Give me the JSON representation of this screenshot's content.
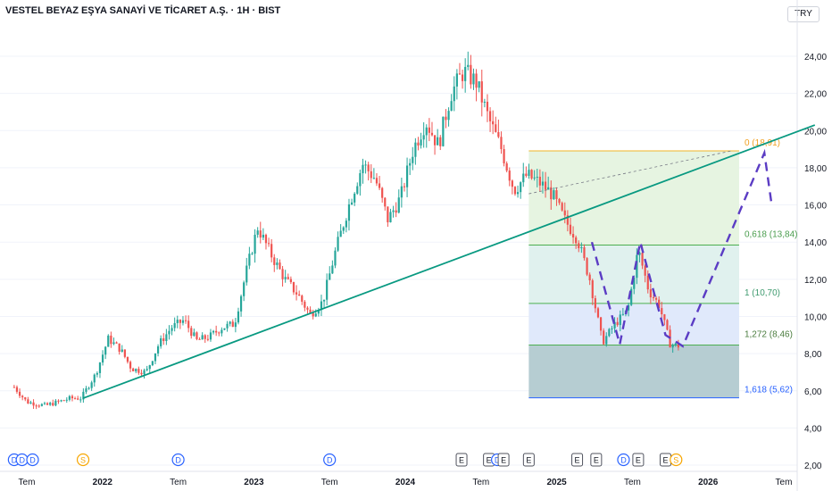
{
  "header": {
    "title": "VESTEL BEYAZ EŞYA SANAYİ VE TİCARET A.Ş. · 1H · BIST",
    "currency": "TRY"
  },
  "colors": {
    "up": "#26a69a",
    "down": "#ef5350",
    "trendline": "#089981",
    "projection": "#5b3cc4",
    "fib_top_line": "#f0b528",
    "fib_mid_line": "#4caf50",
    "fib_low_line": "#2962ff",
    "axis_text": "#131722"
  },
  "chart_data": {
    "type": "candlestick",
    "y_axis": {
      "min": 2.0,
      "max": 24.0,
      "ticks": [
        "24,00",
        "22,00",
        "20,00",
        "18,00",
        "16,00",
        "14,00",
        "12,00",
        "10,00",
        "8,00",
        "6,00",
        "4,00",
        "2,00"
      ],
      "side": "right"
    },
    "x_axis": {
      "labels": [
        "Tem",
        "2022",
        "Tem",
        "2023",
        "Tem",
        "2024",
        "Tem",
        "2025",
        "Tem",
        "2026",
        "Tem"
      ],
      "label_dates": [
        "2021-07-01",
        "2022-01-01",
        "2022-07-01",
        "2023-01-01",
        "2023-07-01",
        "2024-01-01",
        "2024-07-01",
        "2025-01-01",
        "2025-07-01",
        "2026-01-01",
        "2026-07-01"
      ]
    },
    "price_path": [
      {
        "date": "2021-06-01",
        "price": 6.2
      },
      {
        "date": "2021-07-01",
        "price": 5.4
      },
      {
        "date": "2021-08-15",
        "price": 5.2
      },
      {
        "date": "2021-10-15",
        "price": 5.6
      },
      {
        "date": "2021-11-10",
        "price": 5.6
      },
      {
        "date": "2021-12-15",
        "price": 6.9
      },
      {
        "date": "2022-01-15",
        "price": 8.8
      },
      {
        "date": "2022-02-15",
        "price": 8.2
      },
      {
        "date": "2022-03-10",
        "price": 7.2
      },
      {
        "date": "2022-04-15",
        "price": 7.0
      },
      {
        "date": "2022-05-15",
        "price": 8.5
      },
      {
        "date": "2022-06-15",
        "price": 9.4
      },
      {
        "date": "2022-07-15",
        "price": 9.8
      },
      {
        "date": "2022-08-15",
        "price": 8.7
      },
      {
        "date": "2022-09-15",
        "price": 8.9
      },
      {
        "date": "2022-10-15",
        "price": 9.4
      },
      {
        "date": "2022-11-15",
        "price": 9.6
      },
      {
        "date": "2022-12-15",
        "price": 12.6
      },
      {
        "date": "2023-01-10",
        "price": 14.8
      },
      {
        "date": "2023-02-15",
        "price": 13.2
      },
      {
        "date": "2023-03-15",
        "price": 12.0
      },
      {
        "date": "2023-04-15",
        "price": 11.2
      },
      {
        "date": "2023-05-15",
        "price": 10.1
      },
      {
        "date": "2023-06-15",
        "price": 10.8
      },
      {
        "date": "2023-07-15",
        "price": 13.5
      },
      {
        "date": "2023-08-20",
        "price": 16.2
      },
      {
        "date": "2023-09-20",
        "price": 18.2
      },
      {
        "date": "2023-10-20",
        "price": 17.4
      },
      {
        "date": "2023-11-20",
        "price": 15.2
      },
      {
        "date": "2023-12-20",
        "price": 16.4
      },
      {
        "date": "2024-01-20",
        "price": 19.0
      },
      {
        "date": "2024-02-20",
        "price": 20.5
      },
      {
        "date": "2024-03-20",
        "price": 19.2
      },
      {
        "date": "2024-04-20",
        "price": 22.0
      },
      {
        "date": "2024-05-20",
        "price": 23.2
      },
      {
        "date": "2024-06-20",
        "price": 22.6
      },
      {
        "date": "2024-07-20",
        "price": 20.6
      },
      {
        "date": "2024-08-20",
        "price": 19.0
      },
      {
        "date": "2024-09-20",
        "price": 16.8
      },
      {
        "date": "2024-10-20",
        "price": 17.6
      },
      {
        "date": "2024-11-20",
        "price": 17.2
      },
      {
        "date": "2024-12-20",
        "price": 16.6
      },
      {
        "date": "2025-01-20",
        "price": 15.2
      },
      {
        "date": "2025-02-20",
        "price": 14.2
      },
      {
        "date": "2025-03-20",
        "price": 12.0
      },
      {
        "date": "2025-04-20",
        "price": 8.6
      },
      {
        "date": "2025-05-20",
        "price": 9.6
      },
      {
        "date": "2025-06-20",
        "price": 10.3
      },
      {
        "date": "2025-07-15",
        "price": 13.6
      },
      {
        "date": "2025-08-10",
        "price": 11.4
      },
      {
        "date": "2025-09-05",
        "price": 10.6
      },
      {
        "date": "2025-10-01",
        "price": 8.5
      },
      {
        "date": "2025-10-25",
        "price": 8.4
      }
    ],
    "trendline": {
      "from": {
        "date": "2021-11-15",
        "price": 5.6
      },
      "to": {
        "date": "2026-09-15",
        "price": 20.3
      }
    },
    "fibonacci": {
      "from_date": "2024-10-25",
      "to_date": "2026-03-15",
      "levels": [
        {
          "label": "0 (18,91)",
          "price": 18.91
        },
        {
          "label": "0,618 (13,84)",
          "price": 13.84
        },
        {
          "label": "1 (10,70)",
          "price": 10.7
        },
        {
          "label": "1,272 (8,46)",
          "price": 8.46
        },
        {
          "label": "1,618 (5,62)",
          "price": 5.62
        }
      ]
    },
    "projection": [
      {
        "date": "2025-03-25",
        "price": 14.0
      },
      {
        "date": "2025-06-01",
        "price": 8.5
      },
      {
        "date": "2025-07-20",
        "price": 14.0
      },
      {
        "date": "2025-09-20",
        "price": 9.0
      },
      {
        "date": "2025-11-01",
        "price": 8.4
      },
      {
        "date": "2026-05-15",
        "price": 18.8
      },
      {
        "date": "2026-06-01",
        "price": 16.2
      }
    ],
    "dashed_connector": {
      "from": {
        "date": "2024-10-25",
        "price": 16.6
      },
      "to": {
        "date": "2026-02-25",
        "price": 18.9
      }
    },
    "event_markers": [
      {
        "date": "2021-06-01",
        "letter": "D"
      },
      {
        "date": "2021-06-20",
        "letter": "D"
      },
      {
        "date": "2021-07-15",
        "letter": "D"
      },
      {
        "date": "2021-11-15",
        "letter": "S"
      },
      {
        "date": "2022-07-01",
        "letter": "D"
      },
      {
        "date": "2023-07-01",
        "letter": "D"
      },
      {
        "date": "2024-05-15",
        "letter": "E"
      },
      {
        "date": "2024-07-20",
        "letter": "E"
      },
      {
        "date": "2024-08-10",
        "letter": "D"
      },
      {
        "date": "2024-08-25",
        "letter": "E"
      },
      {
        "date": "2024-10-25",
        "letter": "E"
      },
      {
        "date": "2025-02-20",
        "letter": "E"
      },
      {
        "date": "2025-04-05",
        "letter": "E"
      },
      {
        "date": "2025-06-10",
        "letter": "D"
      },
      {
        "date": "2025-07-15",
        "letter": "E"
      },
      {
        "date": "2025-09-20",
        "letter": "E"
      },
      {
        "date": "2025-10-15",
        "letter": "S"
      }
    ]
  }
}
